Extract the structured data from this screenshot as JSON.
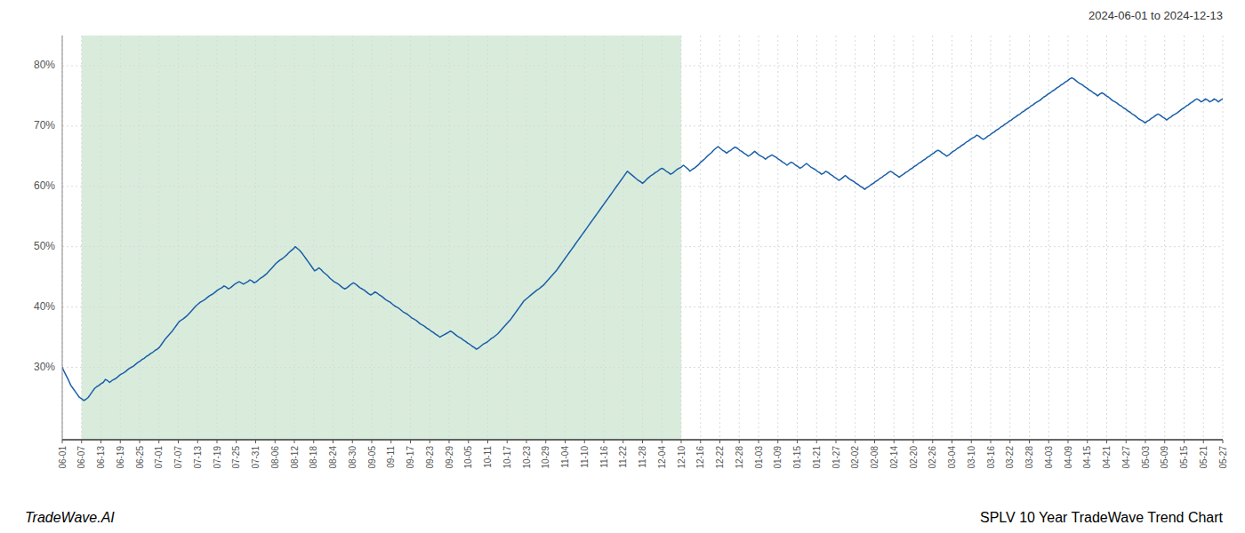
{
  "chart_data": {
    "type": "line",
    "title": "SPLV 10 Year TradeWave Trend Chart",
    "subtitle": "2024-06-01 to 2024-12-13",
    "annotations": [
      "TradeWave.AI"
    ],
    "color": "#1a5fa8",
    "grid": true,
    "shade": {
      "from": 8.9667,
      "to": 286.9333,
      "color": "#cce5d0"
    },
    "xlim": [
      0,
      538
    ],
    "xticks": [
      {
        "value": 0,
        "label": "06-01"
      },
      {
        "value": 8.9667,
        "label": "06-07"
      },
      {
        "value": 17.9333,
        "label": "06-13"
      },
      {
        "value": 26.9,
        "label": "06-19"
      },
      {
        "value": 35.8667,
        "label": "06-25"
      },
      {
        "value": 44.8333,
        "label": "07-01"
      },
      {
        "value": 53.8,
        "label": "07-07"
      },
      {
        "value": 62.7667,
        "label": "07-13"
      },
      {
        "value": 71.7333,
        "label": "07-19"
      },
      {
        "value": 80.7,
        "label": "07-25"
      },
      {
        "value": 89.6667,
        "label": "07-31"
      },
      {
        "value": 98.6333,
        "label": "08-06"
      },
      {
        "value": 107.6,
        "label": "08-12"
      },
      {
        "value": 116.5667,
        "label": "08-18"
      },
      {
        "value": 125.5333,
        "label": "08-24"
      },
      {
        "value": 134.5,
        "label": "08-30"
      },
      {
        "value": 143.4667,
        "label": "09-05"
      },
      {
        "value": 152.4333,
        "label": "09-11"
      },
      {
        "value": 161.4,
        "label": "09-17"
      },
      {
        "value": 170.3667,
        "label": "09-23"
      },
      {
        "value": 179.3333,
        "label": "09-29"
      },
      {
        "value": 188.3,
        "label": "10-05"
      },
      {
        "value": 197.2667,
        "label": "10-11"
      },
      {
        "value": 206.2333,
        "label": "10-17"
      },
      {
        "value": 215.2,
        "label": "10-23"
      },
      {
        "value": 224.1667,
        "label": "10-29"
      },
      {
        "value": 233.1333,
        "label": "11-04"
      },
      {
        "value": 242.1,
        "label": "11-10"
      },
      {
        "value": 251.0667,
        "label": "11-16"
      },
      {
        "value": 260.0333,
        "label": "11-22"
      },
      {
        "value": 269,
        "label": "11-28"
      },
      {
        "value": 277.9667,
        "label": "12-04"
      },
      {
        "value": 286.9333,
        "label": "12-10"
      },
      {
        "value": 295.9,
        "label": "12-16"
      },
      {
        "value": 304.8667,
        "label": "12-22"
      },
      {
        "value": 313.8333,
        "label": "12-28"
      },
      {
        "value": 322.8,
        "label": "01-03"
      },
      {
        "value": 331.7667,
        "label": "01-09"
      },
      {
        "value": 340.7333,
        "label": "01-15"
      },
      {
        "value": 349.7,
        "label": "01-21"
      },
      {
        "value": 358.6667,
        "label": "01-27"
      },
      {
        "value": 367.6333,
        "label": "02-02"
      },
      {
        "value": 376.6,
        "label": "02-08"
      },
      {
        "value": 385.5667,
        "label": "02-14"
      },
      {
        "value": 394.5333,
        "label": "02-20"
      },
      {
        "value": 403.5,
        "label": "02-26"
      },
      {
        "value": 412.4667,
        "label": "03-04"
      },
      {
        "value": 421.4333,
        "label": "03-10"
      },
      {
        "value": 430.4,
        "label": "03-16"
      },
      {
        "value": 439.3667,
        "label": "03-22"
      },
      {
        "value": 448.3333,
        "label": "03-28"
      },
      {
        "value": 457.3,
        "label": "04-03"
      },
      {
        "value": 466.2667,
        "label": "04-09"
      },
      {
        "value": 475.2333,
        "label": "04-15"
      },
      {
        "value": 484.2,
        "label": "04-21"
      },
      {
        "value": 493.1667,
        "label": "04-27"
      },
      {
        "value": 502.1333,
        "label": "05-03"
      },
      {
        "value": 511.1,
        "label": "05-09"
      },
      {
        "value": 520.0667,
        "label": "05-15"
      },
      {
        "value": 529.0333,
        "label": "05-21"
      },
      {
        "value": 538,
        "label": "05-27"
      }
    ],
    "ylim": [
      18,
      85
    ],
    "yticks": [
      {
        "value": 30,
        "label": "30%"
      },
      {
        "value": 40,
        "label": "40%"
      },
      {
        "value": 50,
        "label": "50%"
      },
      {
        "value": 60,
        "label": "60%"
      },
      {
        "value": 70,
        "label": "70%"
      },
      {
        "value": 80,
        "label": "80%"
      }
    ],
    "values": [
      30.0,
      29.2,
      28.5,
      27.8,
      27.0,
      26.5,
      26.0,
      25.5,
      25.0,
      24.8,
      24.5,
      24.7,
      25.0,
      25.5,
      26.0,
      26.5,
      26.8,
      27.0,
      27.3,
      27.5,
      28.0,
      27.8,
      27.5,
      27.8,
      28.0,
      28.2,
      28.5,
      28.8,
      29.0,
      29.2,
      29.5,
      29.8,
      30.0,
      30.2,
      30.5,
      30.8,
      31.0,
      31.3,
      31.5,
      31.8,
      32.0,
      32.3,
      32.5,
      32.8,
      33.0,
      33.3,
      33.8,
      34.3,
      34.8,
      35.2,
      35.6,
      36.0,
      36.5,
      37.0,
      37.5,
      37.8,
      38.0,
      38.3,
      38.6,
      39.0,
      39.4,
      39.8,
      40.2,
      40.5,
      40.8,
      41.0,
      41.2,
      41.5,
      41.8,
      42.0,
      42.2,
      42.5,
      42.8,
      43.0,
      43.2,
      43.5,
      43.3,
      43.0,
      43.2,
      43.5,
      43.8,
      44.0,
      44.2,
      44.0,
      43.8,
      44.0,
      44.2,
      44.5,
      44.3,
      44.0,
      44.2,
      44.5,
      44.8,
      45.0,
      45.3,
      45.6,
      46.0,
      46.4,
      46.8,
      47.2,
      47.5,
      47.8,
      48.0,
      48.3,
      48.6,
      49.0,
      49.3,
      49.6,
      50.0,
      49.7,
      49.4,
      49.0,
      48.5,
      48.0,
      47.5,
      47.0,
      46.5,
      46.0,
      46.2,
      46.5,
      46.2,
      45.8,
      45.5,
      45.2,
      44.8,
      44.5,
      44.2,
      44.0,
      43.8,
      43.5,
      43.2,
      43.0,
      43.2,
      43.5,
      43.8,
      44.0,
      43.8,
      43.5,
      43.2,
      43.0,
      42.8,
      42.5,
      42.2,
      42.0,
      42.2,
      42.5,
      42.3,
      42.0,
      41.8,
      41.5,
      41.2,
      41.0,
      40.8,
      40.5,
      40.2,
      40.0,
      39.8,
      39.5,
      39.2,
      39.0,
      38.8,
      38.5,
      38.2,
      38.0,
      37.8,
      37.5,
      37.2,
      37.0,
      36.8,
      36.5,
      36.3,
      36.0,
      35.8,
      35.5,
      35.3,
      35.0,
      35.2,
      35.4,
      35.6,
      35.8,
      36.0,
      35.8,
      35.5,
      35.2,
      35.0,
      34.8,
      34.5,
      34.3,
      34.0,
      33.8,
      33.5,
      33.3,
      33.0,
      33.2,
      33.5,
      33.8,
      34.0,
      34.2,
      34.5,
      34.8,
      35.0,
      35.3,
      35.6,
      36.0,
      36.4,
      36.8,
      37.2,
      37.6,
      38.0,
      38.5,
      39.0,
      39.5,
      40.0,
      40.5,
      41.0,
      41.3,
      41.6,
      41.9,
      42.2,
      42.5,
      42.8,
      43.0,
      43.3,
      43.6,
      44.0,
      44.4,
      44.8,
      45.2,
      45.6,
      46.0,
      46.5,
      47.0,
      47.5,
      48.0,
      48.5,
      49.0,
      49.5,
      50.0,
      50.5,
      51.0,
      51.5,
      52.0,
      52.5,
      53.0,
      53.5,
      54.0,
      54.5,
      55.0,
      55.5,
      56.0,
      56.5,
      57.0,
      57.5,
      58.0,
      58.5,
      59.0,
      59.5,
      60.0,
      60.5,
      61.0,
      61.5,
      62.0,
      62.5,
      62.2,
      61.9,
      61.6,
      61.3,
      61.0,
      60.8,
      60.5,
      60.8,
      61.2,
      61.5,
      61.8,
      62.0,
      62.3,
      62.5,
      62.8,
      63.0,
      62.8,
      62.5,
      62.3,
      62.0,
      62.2,
      62.5,
      62.8,
      63.0,
      63.2,
      63.5,
      63.2,
      62.9,
      62.5,
      62.8,
      63.0,
      63.3,
      63.6,
      64.0,
      64.3,
      64.6,
      65.0,
      65.3,
      65.6,
      66.0,
      66.3,
      66.6,
      66.3,
      66.0,
      65.8,
      65.5,
      65.8,
      66.0,
      66.3,
      66.5,
      66.3,
      66.0,
      65.8,
      65.5,
      65.3,
      65.0,
      65.2,
      65.5,
      65.8,
      65.5,
      65.2,
      65.0,
      64.8,
      64.5,
      64.8,
      65.0,
      65.2,
      65.0,
      64.8,
      64.5,
      64.3,
      64.0,
      63.8,
      63.5,
      63.8,
      64.0,
      63.8,
      63.5,
      63.3,
      63.0,
      63.2,
      63.5,
      63.8,
      63.5,
      63.2,
      63.0,
      62.8,
      62.5,
      62.3,
      62.0,
      62.2,
      62.5,
      62.3,
      62.0,
      61.8,
      61.5,
      61.3,
      61.0,
      61.2,
      61.5,
      61.8,
      61.5,
      61.2,
      61.0,
      60.8,
      60.5,
      60.3,
      60.0,
      59.8,
      59.5,
      59.8,
      60.0,
      60.3,
      60.5,
      60.8,
      61.0,
      61.3,
      61.5,
      61.8,
      62.0,
      62.3,
      62.5,
      62.3,
      62.0,
      61.8,
      61.5,
      61.8,
      62.0,
      62.3,
      62.5,
      62.8,
      63.0,
      63.3,
      63.5,
      63.8,
      64.0,
      64.3,
      64.5,
      64.8,
      65.0,
      65.3,
      65.5,
      65.8,
      66.0,
      65.8,
      65.5,
      65.3,
      65.0,
      65.2,
      65.5,
      65.8,
      66.0,
      66.3,
      66.5,
      66.8,
      67.0,
      67.3,
      67.5,
      67.8,
      68.0,
      68.2,
      68.5,
      68.3,
      68.0,
      67.8,
      68.0,
      68.3,
      68.5,
      68.8,
      69.0,
      69.3,
      69.5,
      69.8,
      70.0,
      70.3,
      70.5,
      70.8,
      71.0,
      71.3,
      71.5,
      71.8,
      72.0,
      72.3,
      72.5,
      72.8,
      73.0,
      73.3,
      73.5,
      73.8,
      74.0,
      74.2,
      74.5,
      74.8,
      75.0,
      75.3,
      75.5,
      75.8,
      76.0,
      76.3,
      76.5,
      76.8,
      77.0,
      77.3,
      77.5,
      77.8,
      78.0,
      77.8,
      77.5,
      77.2,
      77.0,
      76.8,
      76.5,
      76.3,
      76.0,
      75.8,
      75.5,
      75.3,
      75.0,
      75.3,
      75.5,
      75.3,
      75.0,
      74.8,
      74.5,
      74.2,
      74.0,
      73.8,
      73.5,
      73.3,
      73.0,
      72.8,
      72.5,
      72.3,
      72.0,
      71.8,
      71.5,
      71.2,
      71.0,
      70.8,
      70.5,
      70.8,
      71.0,
      71.3,
      71.5,
      71.8,
      72.0,
      71.8,
      71.5,
      71.3,
      71.0,
      71.3,
      71.5,
      71.8,
      72.0,
      72.2,
      72.5,
      72.8,
      73.0,
      73.3,
      73.5,
      73.8,
      74.0,
      74.3,
      74.5,
      74.3,
      74.0,
      74.2,
      74.5,
      74.3,
      74.0,
      74.2,
      74.5,
      74.3,
      74.0,
      74.3,
      74.5
    ]
  }
}
